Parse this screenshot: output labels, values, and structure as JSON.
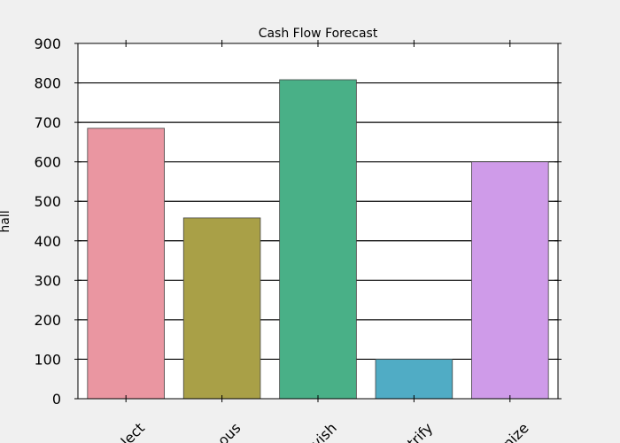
{
  "chart_data": {
    "type": "bar",
    "title": "Cash Flow Forecast",
    "xlabel": "",
    "ylabel": "hall",
    "categories": [
      "elect",
      "ous",
      "vish",
      "trify",
      "nize"
    ],
    "values": [
      685,
      458,
      808,
      100,
      600
    ],
    "colors": [
      "#ea96a1",
      "#a9a047",
      "#49b087",
      "#50acc5",
      "#cf9be9"
    ],
    "ylim": [
      0,
      900
    ],
    "yticks": [
      0,
      100,
      200,
      300,
      400,
      500,
      600,
      700,
      800,
      900
    ],
    "grid": true
  }
}
